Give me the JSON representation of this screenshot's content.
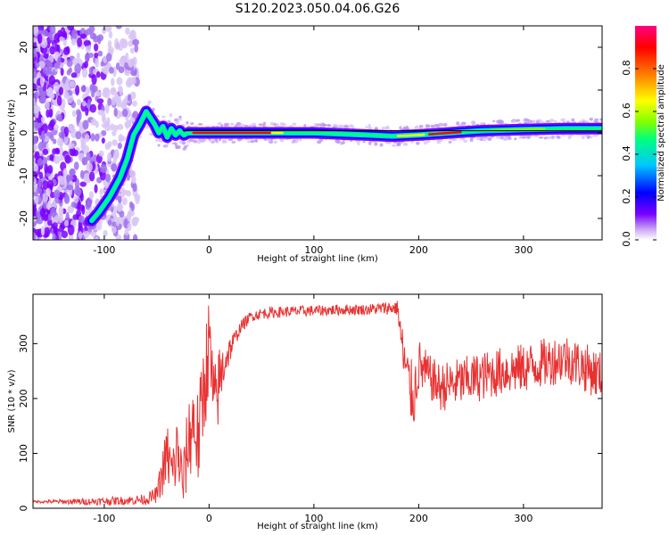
{
  "title": "S120.2023.050.04.06.G26",
  "chart_data": [
    {
      "type": "heatmap",
      "xlabel": "Height of straight line (km)",
      "ylabel": "Frequency (Hz)",
      "xlim": [
        -168,
        375
      ],
      "ylim": [
        -25,
        25
      ],
      "x_ticks": [
        -100,
        0,
        100,
        200,
        300
      ],
      "y_ticks": [
        -20,
        -10,
        0,
        10,
        20
      ],
      "colorbar": {
        "label": "Normalized spectral amplitude",
        "range": [
          0,
          1
        ],
        "ticks": [
          "0.0",
          "0.2",
          "0.4",
          "0.6",
          "0.8"
        ],
        "colors": [
          "#ffffff",
          "#c9a6f2",
          "#7a00ff",
          "#0000ff",
          "#00c8ff",
          "#00ff7f",
          "#80ff00",
          "#ffff00",
          "#ff8000",
          "#ff0000",
          "#ff0080"
        ]
      },
      "ridge": {
        "x": [
          -112,
          -105,
          -95,
          -85,
          -78,
          -72,
          -66,
          -60,
          -56,
          -52,
          -48,
          -44,
          -40,
          -36,
          -32,
          -28,
          -24,
          -20,
          0,
          50,
          100,
          150,
          175,
          200,
          230,
          260,
          300,
          340,
          375
        ],
        "y": [
          -20.5,
          -18.5,
          -15,
          -10.5,
          -6,
          -0.5,
          2,
          5,
          3.5,
          2,
          0,
          1.5,
          -1,
          1,
          -0.5,
          0.5,
          -0.5,
          0,
          0,
          0,
          0,
          -0.5,
          -0.8,
          -0.5,
          0,
          0.5,
          0.8,
          1,
          1
        ]
      },
      "reference_line": {
        "y": 0.5,
        "x_range": [
          -25,
          375
        ]
      }
    },
    {
      "type": "line",
      "xlabel": "Height of straight line (km)",
      "ylabel": "SNR (10 * v/v)",
      "xlim": [
        -168,
        375
      ],
      "ylim": [
        0,
        390
      ],
      "x_ticks": [
        -100,
        0,
        100,
        200,
        300
      ],
      "y_ticks": [
        0,
        100,
        200,
        300
      ],
      "color": "#e83232",
      "series": [
        {
          "x": [
            -168,
            -120,
            -80,
            -60,
            -50,
            -45,
            -40,
            -35,
            -30,
            -25,
            -20,
            -15,
            -10,
            -5,
            0,
            5,
            10,
            15,
            20,
            25,
            30,
            40,
            50,
            70,
            100,
            130,
            150,
            170,
            180,
            185,
            190,
            195,
            200,
            210,
            220,
            240,
            260,
            280,
            300,
            320,
            340,
            360,
            375
          ],
          "y": [
            12,
            12,
            14,
            16,
            25,
            60,
            100,
            60,
            110,
            40,
            120,
            160,
            120,
            220,
            300,
            180,
            230,
            270,
            290,
            310,
            330,
            350,
            355,
            358,
            360,
            362,
            362,
            365,
            365,
            280,
            230,
            200,
            260,
            240,
            220,
            230,
            240,
            250,
            255,
            265,
            275,
            255,
            240
          ]
        }
      ],
      "noise": [
        2,
        6,
        8,
        10,
        15,
        40,
        60,
        55,
        70,
        50,
        80,
        90,
        90,
        100,
        90,
        80,
        70,
        40,
        25,
        15,
        12,
        10,
        10,
        10,
        10,
        10,
        10,
        12,
        14,
        50,
        60,
        60,
        50,
        40,
        45,
        45,
        45,
        45,
        45,
        45,
        45,
        45,
        45
      ]
    }
  ]
}
